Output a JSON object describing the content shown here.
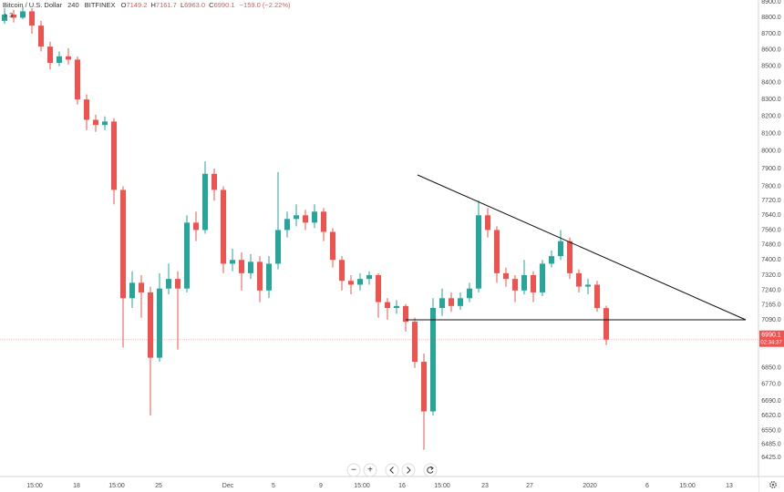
{
  "chart_data": {
    "type": "candlestick",
    "title": "Bitcoin / U.S. Dollar",
    "interval": "240",
    "exchange": "BITFINEX",
    "header_ohlc": [
      {
        "label": "O",
        "value": "7149.2"
      },
      {
        "label": "H",
        "value": "7161.7"
      },
      {
        "label": "L",
        "value": "6963.0"
      },
      {
        "label": "C",
        "value": "6990.1"
      }
    ],
    "change": "−159.0 (−2.22%)",
    "indicators_count": "3",
    "log_scale": true,
    "grid": false,
    "up_color": "#26a69a",
    "down_color": "#ef5350",
    "open": [
      8780,
      8820,
      8800,
      8840,
      8750,
      8620,
      8520,
      8560,
      8540,
      8300,
      8180,
      8150,
      8170,
      7780,
      7200,
      7280,
      7230,
      6900,
      7250,
      7300,
      7250,
      7600,
      7560,
      7870,
      7780,
      7380,
      7400,
      7330,
      7390,
      7240,
      7380,
      7560,
      7620,
      7640,
      7600,
      7660,
      7550,
      7400,
      7290,
      7270,
      7300,
      7320,
      7180,
      7150,
      7160,
      7080,
      6880,
      6640,
      7150,
      7200,
      7160,
      7200,
      7250,
      7640,
      7560,
      7330,
      7300,
      7240,
      7320,
      7230,
      7380,
      7420,
      7500,
      7330,
      7260,
      7270,
      7149.2
    ],
    "high": [
      8860,
      8850,
      8870,
      8860,
      8780,
      8650,
      8590,
      8610,
      8560,
      8330,
      8210,
      8200,
      8190,
      7800,
      7340,
      7320,
      7260,
      7330,
      7380,
      7340,
      7640,
      7660,
      7940,
      7900,
      7800,
      7460,
      7440,
      7430,
      7420,
      7420,
      7880,
      7660,
      7700,
      7670,
      7700,
      7680,
      7570,
      7420,
      7320,
      7330,
      7340,
      7330,
      7200,
      7190,
      7170,
      7100,
      6920,
      7200,
      7250,
      7230,
      7230,
      7280,
      7720,
      7680,
      7580,
      7360,
      7320,
      7400,
      7340,
      7400,
      7450,
      7560,
      7520,
      7350,
      7300,
      7290,
      7161.7
    ],
    "low": [
      8760,
      8770,
      8790,
      8700,
      8590,
      8480,
      8500,
      8510,
      8270,
      8120,
      8110,
      8120,
      7700,
      6950,
      7150,
      7100,
      6620,
      6880,
      7220,
      6940,
      7230,
      7500,
      7540,
      7720,
      7330,
      7340,
      7240,
      7300,
      7180,
      7200,
      7350,
      7520,
      7580,
      7560,
      7570,
      7500,
      7360,
      7240,
      7220,
      7240,
      7270,
      7100,
      7090,
      7120,
      7030,
      6850,
      6460,
      6620,
      7110,
      7130,
      7140,
      7180,
      7230,
      7520,
      7280,
      7260,
      7180,
      7220,
      7180,
      7210,
      7360,
      7400,
      7300,
      7230,
      7220,
      7130,
      6963.0
    ],
    "close": [
      8820,
      8800,
      8840,
      8750,
      8620,
      8520,
      8560,
      8540,
      8300,
      8180,
      8150,
      8170,
      7780,
      7200,
      7280,
      7230,
      6900,
      7250,
      7300,
      7250,
      7600,
      7560,
      7870,
      7780,
      7380,
      7400,
      7330,
      7390,
      7240,
      7380,
      7560,
      7620,
      7640,
      7600,
      7660,
      7550,
      7400,
      7290,
      7270,
      7300,
      7320,
      7180,
      7150,
      7160,
      7080,
      6880,
      6640,
      7150,
      7200,
      7160,
      7200,
      7250,
      7640,
      7560,
      7330,
      7300,
      7240,
      7320,
      7230,
      7380,
      7420,
      7500,
      7330,
      7260,
      7270,
      7149.2,
      6990.1
    ],
    "last_price": {
      "value": 6990.1,
      "label": "6990.1"
    },
    "countdown": "02:34:37",
    "xlim": [
      0,
      83.2
    ],
    "xticks": [
      {
        "value": 3.8,
        "label": "15:00"
      },
      {
        "value": 8.4,
        "label": "18"
      },
      {
        "value": 12.8,
        "label": "15:00"
      },
      {
        "value": 17.4,
        "label": "25"
      },
      {
        "value": 25.0,
        "label": "Dec"
      },
      {
        "value": 30.0,
        "label": "5"
      },
      {
        "value": 35.2,
        "label": "9"
      },
      {
        "value": 39.7,
        "label": "15:00"
      },
      {
        "value": 44.1,
        "label": "16"
      },
      {
        "value": 48.5,
        "label": "15:00"
      },
      {
        "value": 53.2,
        "label": "23"
      },
      {
        "value": 58.1,
        "label": "27"
      },
      {
        "value": 64.7,
        "label": "2020"
      },
      {
        "value": 71.0,
        "label": "6"
      },
      {
        "value": 75.4,
        "label": "15:00"
      },
      {
        "value": 80.0,
        "label": "13"
      }
    ],
    "ylim": [
      6342,
      8912
    ],
    "yticks": [
      {
        "value": 8900,
        "label": "8900.0"
      },
      {
        "value": 8800,
        "label": "8800.0"
      },
      {
        "value": 8700,
        "label": "8700.0"
      },
      {
        "value": 8600,
        "label": "8600.0"
      },
      {
        "value": 8500,
        "label": "8500.0"
      },
      {
        "value": 8400,
        "label": "8400.0"
      },
      {
        "value": 8300,
        "label": "8300.0"
      },
      {
        "value": 8200,
        "label": "8200.0"
      },
      {
        "value": 8100,
        "label": "8100.0"
      },
      {
        "value": 8000,
        "label": "8000.0"
      },
      {
        "value": 7900,
        "label": "7900.0"
      },
      {
        "value": 7800,
        "label": "7800.0"
      },
      {
        "value": 7720,
        "label": "7720.0"
      },
      {
        "value": 7640,
        "label": "7640.0"
      },
      {
        "value": 7560,
        "label": "7560.0"
      },
      {
        "value": 7480,
        "label": "7480.0"
      },
      {
        "value": 7400,
        "label": "7400.0"
      },
      {
        "value": 7320,
        "label": "7320.0"
      },
      {
        "value": 7240,
        "label": "7240.0"
      },
      {
        "value": 7165,
        "label": "7165.0"
      },
      {
        "value": 7090,
        "label": "7090.0"
      },
      {
        "value": 6850,
        "label": "6850.0"
      },
      {
        "value": 6770,
        "label": "6770.0"
      },
      {
        "value": 6690,
        "label": "6690.0"
      },
      {
        "value": 6620,
        "label": "6620.0"
      },
      {
        "value": 6550,
        "label": "6550.0"
      },
      {
        "value": 6485,
        "label": "6485.0"
      },
      {
        "value": 6425,
        "label": "6425.0"
      }
    ]
  }
}
